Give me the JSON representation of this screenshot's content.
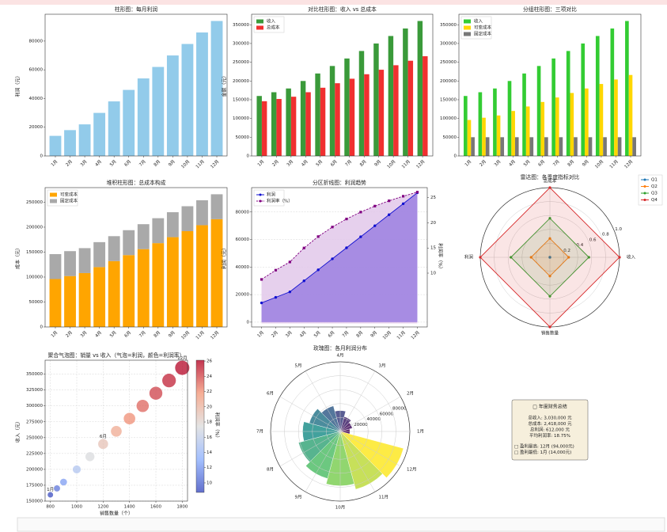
{
  "chart_data": [
    {
      "type": "bar",
      "title": "柱形图：每月利润",
      "ylabel": "利润（元）",
      "categories": [
        "1月",
        "2月",
        "3月",
        "4月",
        "5月",
        "6月",
        "7月",
        "8月",
        "9月",
        "10月",
        "11月",
        "12月"
      ],
      "values": [
        14000,
        18000,
        22000,
        30000,
        38000,
        46000,
        54000,
        62000,
        70000,
        78000,
        86000,
        94000
      ],
      "color": "#92cbea",
      "ylim": [
        0,
        98700
      ],
      "yticks": [
        0,
        20000,
        40000,
        60000,
        80000
      ],
      "grid": false
    },
    {
      "type": "bar",
      "title": "对比柱形图：收入 vs 总成本",
      "ylabel": "金额（元）",
      "categories": [
        "1月",
        "2月",
        "3月",
        "4月",
        "5月",
        "6月",
        "7月",
        "8月",
        "9月",
        "10月",
        "11月",
        "12月"
      ],
      "series": [
        {
          "name": "收入",
          "color": "#3a9a3a",
          "values": [
            160000,
            170000,
            180000,
            200000,
            220000,
            240000,
            260000,
            280000,
            300000,
            320000,
            340000,
            360000
          ]
        },
        {
          "name": "总成本",
          "color": "#f03030",
          "values": [
            146000,
            152000,
            158000,
            170000,
            182000,
            194000,
            206000,
            218000,
            230000,
            242000,
            254000,
            266000
          ]
        }
      ],
      "ylim": [
        0,
        378000
      ],
      "yticks": [
        0,
        50000,
        100000,
        150000,
        200000,
        250000,
        300000,
        350000
      ],
      "legend": "upper left",
      "grid": false
    },
    {
      "type": "bar",
      "title": "分组柱形图：三项对比",
      "categories": [
        "1月",
        "2月",
        "3月",
        "4月",
        "5月",
        "6月",
        "7月",
        "8月",
        "9月",
        "10月",
        "11月",
        "12月"
      ],
      "series": [
        {
          "name": "收入",
          "color": "#33cc33",
          "values": [
            160000,
            170000,
            180000,
            200000,
            220000,
            240000,
            260000,
            280000,
            300000,
            320000,
            340000,
            360000
          ]
        },
        {
          "name": "可变成本",
          "color": "#ffd700",
          "values": [
            96000,
            102000,
            108000,
            120000,
            132000,
            144000,
            156000,
            168000,
            180000,
            192000,
            204000,
            216000
          ]
        },
        {
          "name": "固定成本",
          "color": "#777777",
          "values": [
            50000,
            50000,
            50000,
            50000,
            50000,
            50000,
            50000,
            50000,
            50000,
            50000,
            50000,
            50000
          ]
        }
      ],
      "ylim": [
        0,
        378000
      ],
      "yticks": [
        0,
        50000,
        100000,
        150000,
        200000,
        250000,
        300000,
        350000
      ],
      "legend": "upper left",
      "grid": false
    },
    {
      "type": "bar",
      "stacked": true,
      "title": "堆积柱形图：总成本构成",
      "ylabel": "成本（元）",
      "categories": [
        "1月",
        "2月",
        "3月",
        "4月",
        "5月",
        "6月",
        "7月",
        "8月",
        "9月",
        "10月",
        "11月",
        "12月"
      ],
      "series": [
        {
          "name": "可变成本",
          "color": "#ffa500",
          "values": [
            96000,
            102000,
            108000,
            120000,
            132000,
            144000,
            156000,
            168000,
            180000,
            192000,
            204000,
            216000
          ]
        },
        {
          "name": "固定成本",
          "color": "#a9a9a9",
          "values": [
            50000,
            50000,
            50000,
            50000,
            50000,
            50000,
            50000,
            50000,
            50000,
            50000,
            50000,
            50000
          ]
        }
      ],
      "ylim": [
        0,
        279300
      ],
      "yticks": [
        0,
        50000,
        100000,
        150000,
        200000,
        250000
      ],
      "legend": "upper left",
      "grid": false
    },
    {
      "type": "line",
      "title": "分区折线图：利润趋势",
      "ylabel": "利润（元）",
      "y2label": "利润率（%）",
      "categories": [
        "1月",
        "2月",
        "3月",
        "4月",
        "5月",
        "6月",
        "7月",
        "8月",
        "9月",
        "10月",
        "11月",
        "12月"
      ],
      "series": [
        {
          "name": "利润",
          "color": "#1010d0",
          "fill": "#9b80e0",
          "marker": "circle",
          "values": [
            14000,
            18000,
            22000,
            30000,
            38000,
            46000,
            54000,
            62000,
            70000,
            78000,
            86000,
            94000
          ]
        },
        {
          "name": "利润率（%）",
          "axis": "y2",
          "color": "#800080",
          "fill": "#e2c8ea",
          "marker": "square",
          "dashed": true,
          "values": [
            8.75,
            10.59,
            12.22,
            15,
            17.27,
            19.17,
            20.77,
            22.14,
            23.33,
            24.38,
            25.29,
            26.11
          ]
        }
      ],
      "ylim": [
        -3500,
        97700
      ],
      "yticks": [
        0,
        20000,
        40000,
        60000,
        80000
      ],
      "y2lim": [
        -0.7,
        27
      ],
      "y2ticks": [
        10,
        15,
        20,
        25
      ],
      "legend": "upper left",
      "grid": true
    },
    {
      "type": "radar",
      "title": "雷达图：各季度指标对比",
      "categories": [
        "收入",
        "总成本",
        "利润",
        "销售数量"
      ],
      "series": [
        {
          "name": "Q1",
          "color": "#1f77b4",
          "values": [
            0,
            0,
            0,
            0
          ]
        },
        {
          "name": "Q2",
          "color": "#ff7f0e",
          "values": [
            0.27,
            0.27,
            0.27,
            0.27
          ]
        },
        {
          "name": "Q3",
          "color": "#2ca02c",
          "values": [
            0.56,
            0.56,
            0.56,
            0.56
          ]
        },
        {
          "name": "Q4",
          "color": "#d62728",
          "values": [
            1,
            1,
            1,
            1
          ]
        }
      ],
      "rlim": [
        0,
        1
      ],
      "rticks": [
        0.2,
        0.4,
        0.6,
        0.8,
        {
          "value": 1,
          "label": "1.0"
        }
      ],
      "legend": "upper right"
    },
    {
      "type": "scatter",
      "title": "聚合气泡图：销量 vs 收入（气泡=利润，颜色=利润率）",
      "xlabel": "销售数量（个）",
      "ylabel": "收入（元）",
      "clabel": "利润率（%）",
      "x": [
        800,
        850,
        900,
        1000,
        1100,
        1200,
        1300,
        1400,
        1500,
        1600,
        1700,
        1800
      ],
      "values": [
        160000,
        170000,
        180000,
        200000,
        220000,
        240000,
        260000,
        280000,
        300000,
        320000,
        340000,
        360000
      ],
      "sizes": [
        14000,
        18000,
        22000,
        30000,
        38000,
        46000,
        54000,
        62000,
        70000,
        78000,
        86000,
        94000
      ],
      "c": [
        8.75,
        10.59,
        12.22,
        15,
        17.27,
        19.17,
        20.77,
        22.14,
        23.33,
        24.38,
        25.29,
        26.11
      ],
      "labels": [
        "1月",
        null,
        null,
        null,
        null,
        "6月",
        null,
        null,
        null,
        null,
        null,
        "12月"
      ],
      "cmap": "coolwarm",
      "clim": [
        8.75,
        26.11
      ],
      "cticks": [
        10,
        12,
        14,
        16,
        18,
        20,
        22,
        24,
        26
      ],
      "xlim": [
        760,
        1840
      ],
      "xticks": [
        800,
        1000,
        1200,
        1400,
        1600,
        1800
      ],
      "ylim": [
        150000,
        372000
      ],
      "yticks": [
        150000,
        175000,
        200000,
        225000,
        250000,
        275000,
        300000,
        325000,
        350000
      ],
      "grid": true
    },
    {
      "type": "rose",
      "title": "玫瑰图：各月利润分布",
      "categories": [
        "1月",
        "2月",
        "3月",
        "4月",
        "5月",
        "6月",
        "7月",
        "8月",
        "9月",
        "10月",
        "11月",
        "12月"
      ],
      "values": [
        14000,
        18000,
        22000,
        30000,
        38000,
        46000,
        54000,
        62000,
        70000,
        78000,
        86000,
        94000
      ],
      "cmap": "viridis",
      "rlim": [
        0,
        100000
      ],
      "rticks": [
        20000,
        40000,
        60000,
        80000
      ]
    }
  ],
  "summary": {
    "title": "□ 年度财务总结",
    "lines": [
      "总收入: 3,030,000 元",
      "总成本: 2,418,000 元",
      "总利润: 612,000 元",
      "平均利润率: 18.75%"
    ],
    "notes": [
      "□  盈利最高: 12月 (94,000元)",
      "□  盈利最低: 1月 (14,000元)"
    ]
  }
}
